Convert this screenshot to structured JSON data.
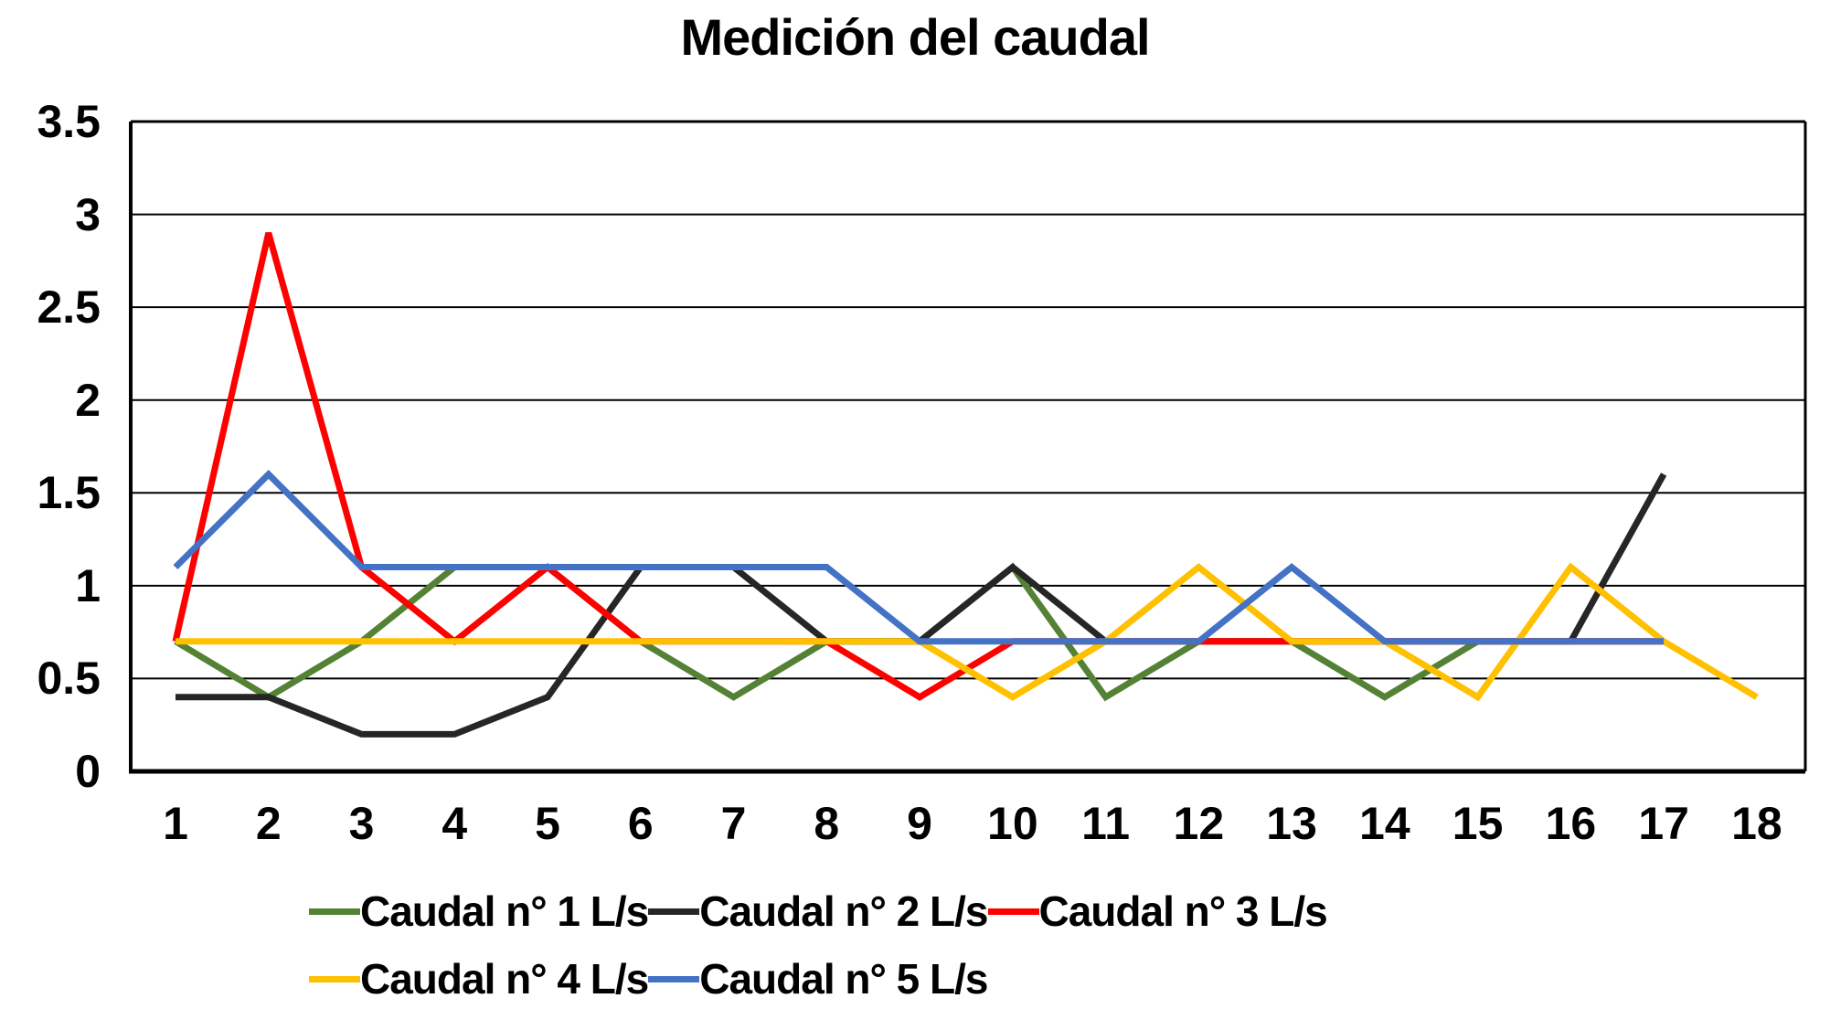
{
  "title": "Medición del caudal",
  "chart_data": {
    "type": "line",
    "title": "Medición del caudal",
    "categories": [
      "1",
      "2",
      "3",
      "4",
      "5",
      "6",
      "7",
      "8",
      "9",
      "10",
      "11",
      "12",
      "13",
      "14",
      "15",
      "16",
      "17",
      "18"
    ],
    "xlabel": "",
    "ylabel": "",
    "ylim": [
      0,
      3.5
    ],
    "yticks": [
      0,
      0.5,
      1,
      1.5,
      2,
      2.5,
      3,
      3.5
    ],
    "yticklabels": [
      "0",
      "0.5",
      "1",
      "1.5",
      "2",
      "2.5",
      "3",
      "3.5"
    ],
    "grid": "horizontal",
    "legend_position": "bottom",
    "series": [
      {
        "name": "Caudal n° 1 L/s",
        "color": "#548235",
        "values": [
          0.7,
          0.4,
          0.7,
          1.1,
          1.1,
          0.7,
          0.4,
          0.7,
          0.7,
          1.1,
          0.4,
          0.7,
          0.7,
          0.4,
          0.7,
          0.7,
          0.7
        ]
      },
      {
        "name": "Caudal n° 2 L/s",
        "color": "#262626",
        "values": [
          0.4,
          0.4,
          0.2,
          0.2,
          0.4,
          1.1,
          1.1,
          0.7,
          0.7,
          1.1,
          0.7,
          0.7,
          0.7,
          0.7,
          0.7,
          0.7,
          1.6
        ]
      },
      {
        "name": "Caudal n° 3 L/s",
        "color": "#ff0000",
        "values": [
          0.7,
          2.9,
          1.1,
          0.7,
          1.1,
          0.7,
          0.7,
          0.7,
          0.4,
          0.7,
          0.7,
          0.7,
          0.7,
          0.7,
          0.7,
          0.7,
          0.7
        ]
      },
      {
        "name": "Caudal n° 4 L/s",
        "color": "#ffc000",
        "values": [
          0.7,
          0.7,
          0.7,
          0.7,
          0.7,
          0.7,
          0.7,
          0.7,
          0.7,
          0.4,
          0.7,
          1.1,
          0.7,
          0.7,
          0.4,
          1.1,
          0.7,
          0.4
        ]
      },
      {
        "name": "Caudal n° 5 L/s",
        "color": "#4472c4",
        "values": [
          1.1,
          1.6,
          1.1,
          1.1,
          1.1,
          1.1,
          1.1,
          1.1,
          0.7,
          0.7,
          0.7,
          0.7,
          1.1,
          0.7,
          0.7,
          0.7,
          0.7
        ]
      }
    ]
  },
  "legend": {
    "rows": [
      [
        0,
        1,
        2
      ],
      [
        3,
        4
      ]
    ]
  }
}
